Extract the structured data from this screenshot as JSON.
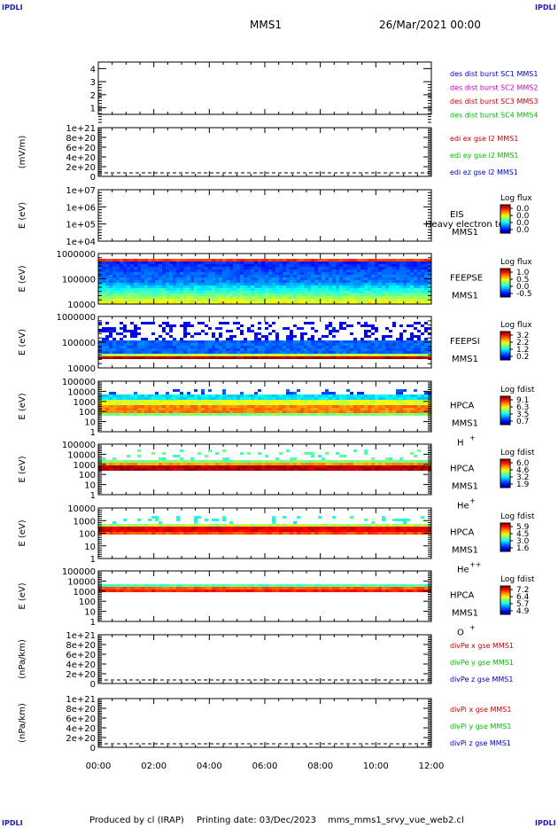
{
  "header": {
    "logo_left": "IPDLI",
    "logo_right": "IPDLI",
    "mission": "MMS1",
    "datetime": "26/Mar/2021 00:00"
  },
  "footer": {
    "logo_left": "IPDLI",
    "logo_right": "IPDLI",
    "credit": "Produced by cl (IRAP)",
    "print_label": "Printing date: 03/Dec/2023",
    "script": "mms_mms1_srvy_vue_web2.cl"
  },
  "x_axis": {
    "range_hours": [
      0,
      12
    ],
    "tick_labels": [
      "00:00",
      "02:00",
      "04:00",
      "06:00",
      "08:00",
      "10:00",
      "12:00"
    ]
  },
  "chart_data": [
    {
      "id": "p1",
      "type": "line",
      "ylabel": "",
      "ylim": [
        0.5,
        4.5
      ],
      "ticks": [
        "1",
        "2",
        "3",
        "4"
      ],
      "legend": [
        {
          "text": "des dist burst SC1 MMS1",
          "color": "#0000cc"
        },
        {
          "text": "des dist burst SC2 MMS2",
          "color": "#cc00cc"
        },
        {
          "text": "des dist burst SC3 MMS3",
          "color": "#cc0000"
        },
        {
          "text": "des dist burst SC4 MMS4",
          "color": "#00bb00"
        }
      ]
    },
    {
      "id": "p2",
      "type": "line",
      "ylabel": "(mV/m)",
      "ticks": [
        "1e+21",
        "8e+20",
        "6e+20",
        "4e+20",
        "2e+20",
        "0"
      ],
      "zero_line": true,
      "legend": [
        {
          "text": "edi ex gse l2 MMS1",
          "color": "#cc0000"
        },
        {
          "text": "edi ey gse l2 MMS1",
          "color": "#00bb00"
        },
        {
          "text": "edi ez gse l2 MMS1",
          "color": "#0000cc"
        }
      ]
    },
    {
      "id": "p3",
      "type": "heatmap",
      "ylabel": "E (eV)",
      "ticks": [
        "1e+07",
        "1e+06",
        "1e+05",
        "1e+04"
      ],
      "instrument": [
        "EIS",
        "MMS1"
      ],
      "overlay": "Heavy electron tof",
      "colorbar": {
        "label": "Log flux",
        "ticks": [
          "0.0",
          "0.0",
          "0.0",
          "0.0"
        ]
      },
      "filled": false
    },
    {
      "id": "p4",
      "type": "heatmap",
      "ylabel": "E (eV)",
      "ticks": [
        "1000000",
        "100000",
        "10000"
      ],
      "instrument": [
        "FEEPSE",
        "MMS1"
      ],
      "colorbar": {
        "label": "Log flux",
        "ticks": [
          "1.0",
          "0.5",
          "0.0",
          "-0.5"
        ]
      },
      "filled": true,
      "style": "feepse"
    },
    {
      "id": "p5",
      "type": "heatmap",
      "ylabel": "E (eV)",
      "ticks": [
        "1000000",
        "100000",
        "10000"
      ],
      "instrument": [
        "FEEPSI",
        "MMS1"
      ],
      "colorbar": {
        "label": "Log flux",
        "ticks": [
          "3.2",
          "2.2",
          "1.2",
          "0.2"
        ]
      },
      "filled": true,
      "style": "feepsi"
    },
    {
      "id": "p6",
      "type": "heatmap",
      "ylabel": "E (eV)",
      "ticks": [
        "100000",
        "10000",
        "1000",
        "100",
        "10",
        "1"
      ],
      "instrument": [
        "HPCA",
        "MMS1"
      ],
      "species": "H",
      "charge": "+",
      "colorbar": {
        "label": "Log fdist",
        "ticks": [
          "9.1",
          "6.3",
          "3.5",
          "0.7"
        ]
      },
      "filled": true,
      "style": "hplus"
    },
    {
      "id": "p7",
      "type": "heatmap",
      "ylabel": "E (eV)",
      "ticks": [
        "100000",
        "10000",
        "1000",
        "100",
        "10",
        "1"
      ],
      "instrument": [
        "HPCA",
        "MMS1"
      ],
      "species": "He",
      "charge": "+",
      "colorbar": {
        "label": "Log fdist",
        "ticks": [
          "6.0",
          "4.6",
          "3.2",
          "1.9"
        ]
      },
      "filled": true,
      "style": "heplus"
    },
    {
      "id": "p8",
      "type": "heatmap",
      "ylabel": "E (eV)",
      "ticks": [
        "10000",
        "1000",
        "100",
        "10",
        "1"
      ],
      "instrument": [
        "HPCA",
        "MMS1"
      ],
      "species": "He",
      "charge": "++",
      "colorbar": {
        "label": "Log fdist",
        "ticks": [
          "5.9",
          "4.5",
          "3.0",
          "1.6"
        ]
      },
      "filled": true,
      "style": "heplusplus"
    },
    {
      "id": "p9",
      "type": "heatmap",
      "ylabel": "E (eV)",
      "ticks": [
        "100000",
        "10000",
        "1000",
        "100",
        "10",
        "1"
      ],
      "instrument": [
        "HPCA",
        "MMS1"
      ],
      "species": "O",
      "charge": "+",
      "colorbar": {
        "label": "Log fdist",
        "ticks": [
          "7.2",
          "6.4",
          "5.7",
          "4.9"
        ]
      },
      "filled": true,
      "style": "oplus"
    },
    {
      "id": "p10",
      "type": "line",
      "ylabel": "(nPa/km)",
      "ticks": [
        "1e+21",
        "8e+20",
        "6e+20",
        "4e+20",
        "2e+20",
        "0"
      ],
      "zero_line": true,
      "legend": [
        {
          "text": "divPe x gse MMS1",
          "color": "#cc0000"
        },
        {
          "text": "divPe y gse MMS1",
          "color": "#00bb00"
        },
        {
          "text": "divPe z gse MMS1",
          "color": "#0000cc"
        }
      ]
    },
    {
      "id": "p11",
      "type": "line",
      "ylabel": "(nPa/km)",
      "ticks": [
        "1e+21",
        "8e+20",
        "6e+20",
        "4e+20",
        "2e+20",
        "0"
      ],
      "zero_line": true,
      "legend": [
        {
          "text": "divPi x gse MMS1",
          "color": "#cc0000"
        },
        {
          "text": "divPi y gse MMS1",
          "color": "#00bb00"
        },
        {
          "text": "divPi z gse MMS1",
          "color": "#0000cc"
        }
      ]
    }
  ]
}
